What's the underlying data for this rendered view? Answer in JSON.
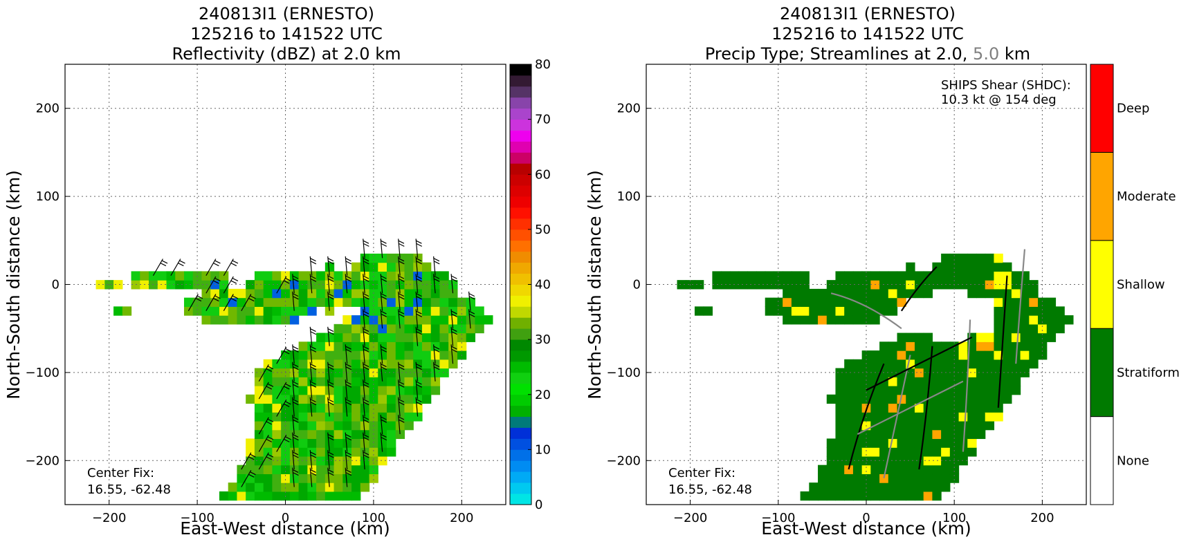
{
  "chart_data": [
    {
      "type": "heatmap",
      "title_lines": [
        "240813I1 (ERNESTO)",
        "125216 to 141522 UTC",
        "Reflectivity (dBZ) at 2.0 km"
      ],
      "xlabel": "East-West distance (km)",
      "ylabel": "North-South distance (km)",
      "xlim": [
        -250,
        250
      ],
      "ylim": [
        -250,
        250
      ],
      "xticks": [
        -200,
        -100,
        0,
        100,
        200
      ],
      "yticks": [
        -200,
        -100,
        0,
        100,
        200
      ],
      "xtick_labels": [
        "−200",
        "−100",
        "0",
        "100",
        "200"
      ],
      "ytick_labels": [
        "−200",
        "−100",
        "0",
        "100",
        "200"
      ],
      "grid": true,
      "annotation": [
        "Center Fix:",
        "16.55, -62.48"
      ],
      "colorbar": {
        "min": 0,
        "max": 80,
        "ticks": [
          0,
          10,
          20,
          30,
          40,
          50,
          60,
          70,
          80
        ],
        "tick_labels": [
          "0",
          "10",
          "20",
          "30",
          "40",
          "50",
          "60",
          "70",
          "80"
        ],
        "colors": [
          "#00e5e5",
          "#00c9f0",
          "#00aaf5",
          "#008cf2",
          "#0070e8",
          "#0050e0",
          "#0030d8",
          "#007a7a",
          "#00b000",
          "#00cc00",
          "#00e000",
          "#10d010",
          "#00bb00",
          "#009900",
          "#008800",
          "#40a010",
          "#70b000",
          "#c0d800",
          "#f0f000",
          "#f0d800",
          "#f0c000",
          "#f0a800",
          "#f08c00",
          "#ff7000",
          "#ff5000",
          "#ff3000",
          "#ff1000",
          "#ee0000",
          "#dd0000",
          "#cc0000",
          "#b80000",
          "#cc0066",
          "#e000b0",
          "#ee00ee",
          "#cc33dd",
          "#aa44cc",
          "#8844aa",
          "#553366",
          "#331a33",
          "#000000"
        ]
      }
    },
    {
      "type": "heatmap",
      "title_lines": [
        "240813I1 (ERNESTO)",
        "125216 to 141522 UTC"
      ],
      "title_line3": {
        "prefix": "Precip Type; Streamlines at 2.0, ",
        "highlight": "5.0",
        "suffix": " km"
      },
      "xlabel": "East-West distance (km)",
      "ylabel": "North-South distance (km)",
      "xlim": [
        -250,
        250
      ],
      "ylim": [
        -250,
        250
      ],
      "xticks": [
        -200,
        -100,
        0,
        100,
        200
      ],
      "yticks": [
        -200,
        -100,
        0,
        100,
        200
      ],
      "xtick_labels": [
        "−200",
        "−100",
        "0",
        "100",
        "200"
      ],
      "ytick_labels": [
        "−200",
        "−100",
        "0",
        "100",
        "200"
      ],
      "grid": true,
      "annotation": [
        "Center Fix:",
        "16.55, -62.48"
      ],
      "shear_text": [
        "SHIPS Shear (SHDC):",
        "10.3 kt @ 154 deg"
      ],
      "categories": [
        "None",
        "Stratiform",
        "Shallow",
        "Moderate",
        "Deep"
      ],
      "category_colors": [
        "#ffffff",
        "#007a00",
        "#ffff00",
        "#ffa500",
        "#ff0000"
      ]
    }
  ],
  "colors": {
    "highlight_gray": "#808080",
    "stream_dark": "#000000",
    "stream_light": "#888888"
  }
}
